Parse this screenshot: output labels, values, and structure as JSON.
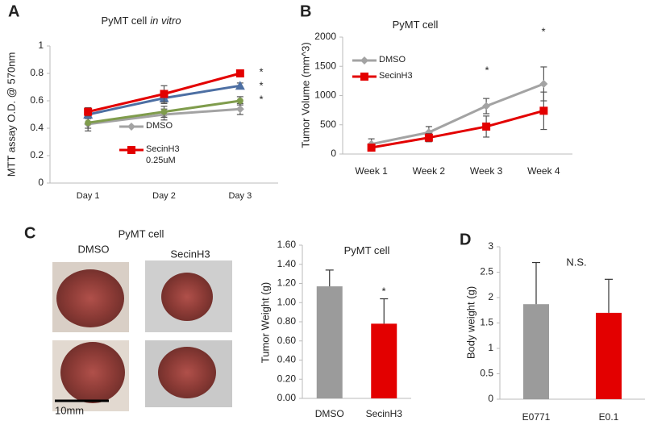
{
  "chart_data": [
    {
      "type": "line",
      "panel_label": "A",
      "title": [
        "PyMT cell",
        "in vitro"
      ],
      "y_label": "MTT assay O.D. @ 570nm",
      "categories": [
        "Day 1",
        "Day 2",
        "Day 3"
      ],
      "ylim": [
        0,
        1
      ],
      "yticks": [
        0,
        0.2,
        0.4,
        0.6,
        0.8,
        1
      ],
      "series": [
        {
          "name": "DMSO",
          "color": "#a3a3a3",
          "marker": "diamond",
          "values": [
            0.43,
            0.5,
            0.54
          ],
          "errors": [
            0.05,
            0.04,
            0.04
          ]
        },
        {
          "color": "#7f9c4c",
          "marker": "circle",
          "values": [
            0.44,
            0.52,
            0.6
          ],
          "errors": [
            0.04,
            0.04,
            0.03
          ]
        },
        {
          "color": "#4d6fa3",
          "marker": "triangle",
          "values": [
            0.5,
            0.62,
            0.71
          ],
          "errors": [
            0.03,
            0.04,
            0.02
          ]
        },
        {
          "name": "SecinH3 0.25uM",
          "color": "#e30000",
          "marker": "square",
          "values": [
            0.52,
            0.65,
            0.8
          ],
          "errors": [
            0.03,
            0.06,
            0.02
          ]
        }
      ],
      "annotations": [
        "*",
        "*",
        "*"
      ]
    },
    {
      "type": "line",
      "panel_label": "B",
      "title": [
        "PyMT cell"
      ],
      "y_label": "Tumor Volume (mm^3)",
      "categories": [
        "Week 1",
        "Week 2",
        "Week 3",
        "Week 4"
      ],
      "ylim": [
        0,
        2000
      ],
      "yticks": [
        0,
        500,
        1000,
        1500,
        2000
      ],
      "series": [
        {
          "name": "DMSO",
          "color": "#a3a3a3",
          "marker": "diamond",
          "values": [
            170,
            370,
            820,
            1200
          ],
          "errors": [
            90,
            100,
            130,
            290
          ]
        },
        {
          "name": "SecinH3",
          "color": "#e30000",
          "marker": "square",
          "values": [
            110,
            280,
            470,
            740
          ],
          "errors": [
            60,
            70,
            180,
            320
          ]
        }
      ],
      "annotations": [
        "*",
        "*"
      ]
    },
    {
      "type": "bar",
      "panel_label": "C",
      "title": [
        "PyMT cell"
      ],
      "y_label": "Tumor Weight (g)",
      "categories": [
        "DMSO",
        "SecinH3"
      ],
      "values": [
        1.17,
        0.78
      ],
      "errors": [
        0.17,
        0.26
      ],
      "colors": [
        "#9b9b9b",
        "#e30000"
      ],
      "ylim": [
        0,
        1.6
      ],
      "yticks": [
        {
          "value": 0,
          "label": "0.00"
        },
        {
          "value": 0.2,
          "label": "0.20"
        },
        {
          "value": 0.4,
          "label": "0.40"
        },
        {
          "value": 0.6,
          "label": "0.60"
        },
        {
          "value": 0.8,
          "label": "0.80"
        },
        {
          "value": 1,
          "label": "1.00"
        },
        {
          "value": 1.2,
          "label": "1.20"
        },
        {
          "value": 1.4,
          "label": "1.40"
        },
        {
          "value": 1.6,
          "label": "1.60"
        }
      ],
      "annotations": [
        "*"
      ]
    },
    {
      "type": "bar",
      "panel_label": "D",
      "y_label": "Body weight (g)",
      "categories": [
        "E0771",
        "E0.1"
      ],
      "values": [
        1.87,
        1.7
      ],
      "errors": [
        0.82,
        0.66
      ],
      "colors": [
        "#9b9b9b",
        "#e30000"
      ],
      "ylim": [
        0,
        3
      ],
      "yticks": [
        0,
        0.5,
        1,
        1.5,
        2,
        2.5,
        3
      ],
      "annotations": [
        "N.S."
      ]
    }
  ],
  "photos": {
    "title": "PyMT cell",
    "labels": [
      "DMSO",
      "SecinH3"
    ],
    "scale_bar": "10mm"
  }
}
